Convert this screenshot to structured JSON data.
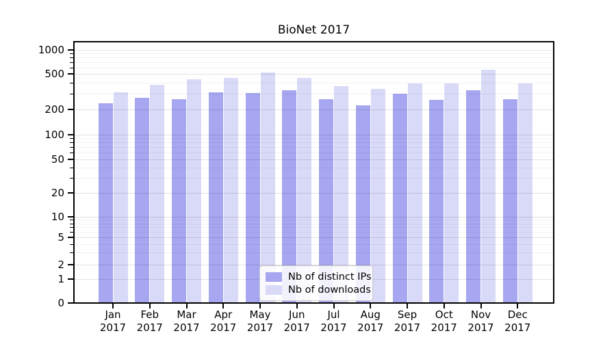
{
  "chart_data": {
    "type": "bar",
    "title": "BioNet 2017",
    "xlabel": "",
    "ylabel": "",
    "yscale": "symlog",
    "ylim": [
      0,
      1000
    ],
    "yticks": [
      0,
      1,
      2,
      5,
      10,
      20,
      50,
      100,
      200,
      500,
      1000
    ],
    "grid": "on",
    "legend_position": "inside-bottom-center",
    "year": "2017",
    "categories": [
      "Jan",
      "Feb",
      "Mar",
      "Apr",
      "May",
      "Jun",
      "Jul",
      "Aug",
      "Sep",
      "Oct",
      "Nov",
      "Dec"
    ],
    "series": [
      {
        "name": "Nb of distinct IPs",
        "color": "#a6a6f1",
        "values": [
          245,
          280,
          270,
          320,
          315,
          340,
          270,
          230,
          310,
          265,
          340,
          270
        ]
      },
      {
        "name": "Nb of downloads",
        "color": "#d9d9f8",
        "values": [
          325,
          390,
          450,
          470,
          540,
          470,
          380,
          350,
          410,
          405,
          585,
          405
        ]
      }
    ]
  }
}
